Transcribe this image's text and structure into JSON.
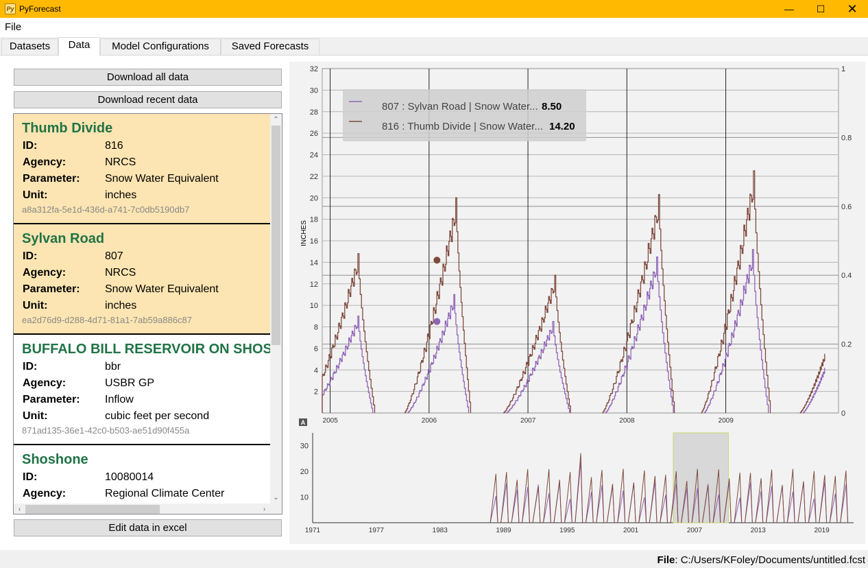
{
  "window": {
    "title": "PyForecast",
    "icon_text": "Py"
  },
  "menu": {
    "file": "File"
  },
  "tabs": [
    "Datasets",
    "Data",
    "Model Configurations",
    "Saved Forecasts"
  ],
  "active_tab": "Data",
  "buttons": {
    "download_all": "Download all data",
    "download_recent": "Download recent data",
    "edit_excel": "Edit data in excel"
  },
  "field_labels": {
    "id": "ID:",
    "agency": "Agency:",
    "parameter": "Parameter:",
    "unit": "Unit:"
  },
  "datasets": [
    {
      "name": "Thumb Divide",
      "id": "816",
      "agency": "NRCS",
      "parameter": "Snow Water Equivalent",
      "unit": "inches",
      "guid": "a8a312fa-5e1d-436d-a741-7c0db5190db7",
      "selected": true
    },
    {
      "name": "Sylvan Road",
      "id": "807",
      "agency": "NRCS",
      "parameter": "Snow Water Equivalent",
      "unit": "inches",
      "guid": "ea2d76d9-d288-4d71-81a1-7ab59a886c87",
      "selected": true
    },
    {
      "name": "BUFFALO BILL RESERVOIR ON SHOSHONE",
      "id": "bbr",
      "agency": "USBR GP",
      "parameter": "Inflow",
      "unit": "cubic feet per second",
      "guid": "871ad135-36e1-42c0-b503-ae51d90f455a",
      "selected": false
    },
    {
      "name": "Shoshone",
      "id": "10080014",
      "agency": "Regional Climate Center",
      "parameter": "",
      "unit": "",
      "guid": "",
      "selected": false
    }
  ],
  "legend": [
    {
      "label": "807 : Sylvan Road | Snow Water...",
      "value": "8.50",
      "color": "#8f65b8"
    },
    {
      "label": "816 : Thumb Divide | Snow Water...",
      "value": "14.20",
      "color": "#7f4a3e"
    }
  ],
  "status": {
    "label": "File",
    "path": ": C:/Users/KFoley/Documents/untitled.fcst"
  },
  "colors": {
    "titlebar": "#ffb900",
    "card_title": "#217346",
    "card_selected": "#fce5b2"
  },
  "chart_data": [
    {
      "type": "line",
      "ylabel": "INCHES",
      "xlim": [
        "2004-10-01",
        "2009-12-31"
      ],
      "ylim": [
        0,
        32
      ],
      "y_ticks": [
        2,
        4,
        6,
        8,
        10,
        12,
        14,
        16,
        18,
        20,
        22,
        24,
        26,
        28,
        30,
        32
      ],
      "y2_ticks": [
        "0",
        "0.2",
        "0.4",
        "0.6",
        "0.8",
        "1"
      ],
      "x_ticks": [
        "2005",
        "2006",
        "2007",
        "2008",
        "2009"
      ],
      "grid": true,
      "legend_position": "top-left",
      "series": [
        {
          "name": "807 : Sylvan Road | Snow Water Equivalent",
          "peaks": [
            {
              "start": 2004.78,
              "peak_date": 2005.28,
              "peak": 9.0,
              "end": 2005.43
            },
            {
              "start": 2005.78,
              "peak_date": 2006.25,
              "peak": 11.0,
              "end": 2006.4
            },
            {
              "start": 2006.78,
              "peak_date": 2007.25,
              "peak": 8.5,
              "end": 2007.42
            },
            {
              "start": 2007.78,
              "peak_date": 2008.3,
              "peak": 14.5,
              "end": 2008.47
            },
            {
              "start": 2008.78,
              "peak_date": 2009.27,
              "peak": 15.2,
              "end": 2009.43
            },
            {
              "start": 2009.78,
              "peak_date": 2010.0,
              "peak": 4.2,
              "end": 2010.0
            }
          ]
        },
        {
          "name": "816 : Thumb Divide | Snow Water Equivalent",
          "peaks": [
            {
              "start": 2004.75,
              "peak_date": 2005.28,
              "peak": 14.8,
              "end": 2005.45
            },
            {
              "start": 2005.75,
              "peak_date": 2006.27,
              "peak": 20.0,
              "end": 2006.42
            },
            {
              "start": 2006.75,
              "peak_date": 2007.27,
              "peak": 12.8,
              "end": 2007.43
            },
            {
              "start": 2007.75,
              "peak_date": 2008.32,
              "peak": 20.3,
              "end": 2008.48
            },
            {
              "start": 2008.75,
              "peak_date": 2009.28,
              "peak": 22.5,
              "end": 2009.45
            },
            {
              "start": 2009.75,
              "peak_date": 2010.0,
              "peak": 5.5,
              "end": 2010.0
            }
          ]
        }
      ],
      "hover_points": [
        {
          "series": "807 : Sylvan Road | Snow Water Equivalent",
          "x": 2006.08,
          "y": 8.5
        },
        {
          "series": "816 : Thumb Divide | Snow Water Equivalent",
          "x": 2006.08,
          "y": 14.2
        }
      ],
      "vertical_lines": [
        2005.0,
        2006.0,
        2007.0,
        2008.0,
        2009.0
      ]
    },
    {
      "type": "line",
      "xlim": [
        1971,
        2022
      ],
      "ylim": [
        0,
        35
      ],
      "x_ticks": [
        "1971",
        "1977",
        "1983",
        "1989",
        "1995",
        "2001",
        "2007",
        "2013",
        "2019"
      ],
      "y_ticks": [
        10,
        20,
        30
      ],
      "data_start_year": 1988,
      "selection_region": [
        2005.0,
        2010.2
      ]
    }
  ]
}
